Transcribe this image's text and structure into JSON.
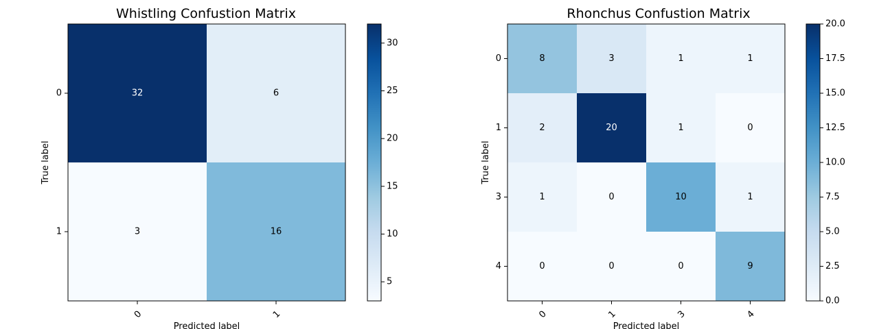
{
  "chart_data": [
    {
      "type": "heatmap",
      "title": "Whistling Confustion Matrix",
      "xlabel": "Predicted label",
      "ylabel": "True label",
      "x_categories": [
        "0",
        "1"
      ],
      "y_categories": [
        "0",
        "1"
      ],
      "values": [
        [
          32,
          6
        ],
        [
          3,
          16
        ]
      ],
      "colormap": "Blues",
      "color_range": [
        3,
        32
      ],
      "colorbar_ticks": [
        "5",
        "10",
        "15",
        "20",
        "25",
        "30"
      ],
      "colorbar_tick_values": [
        5,
        10,
        15,
        20,
        25,
        30
      ],
      "x_tick_rotation": 45
    },
    {
      "type": "heatmap",
      "title": "Rhonchus Confustion Matrix",
      "xlabel": "Predicted label",
      "ylabel": "True label",
      "x_categories": [
        "0",
        "1",
        "3",
        "4"
      ],
      "y_categories": [
        "0",
        "1",
        "3",
        "4"
      ],
      "values": [
        [
          8,
          3,
          1,
          1
        ],
        [
          2,
          20,
          1,
          0
        ],
        [
          1,
          0,
          10,
          1
        ],
        [
          0,
          0,
          0,
          9
        ]
      ],
      "colormap": "Blues",
      "color_range": [
        0,
        20
      ],
      "colorbar_ticks": [
        "0.0",
        "2.5",
        "5.0",
        "7.5",
        "10.0",
        "12.5",
        "15.0",
        "17.5",
        "20.0"
      ],
      "colorbar_tick_values": [
        0,
        2.5,
        5,
        7.5,
        10,
        12.5,
        15,
        17.5,
        20
      ],
      "x_tick_rotation": 45
    }
  ]
}
